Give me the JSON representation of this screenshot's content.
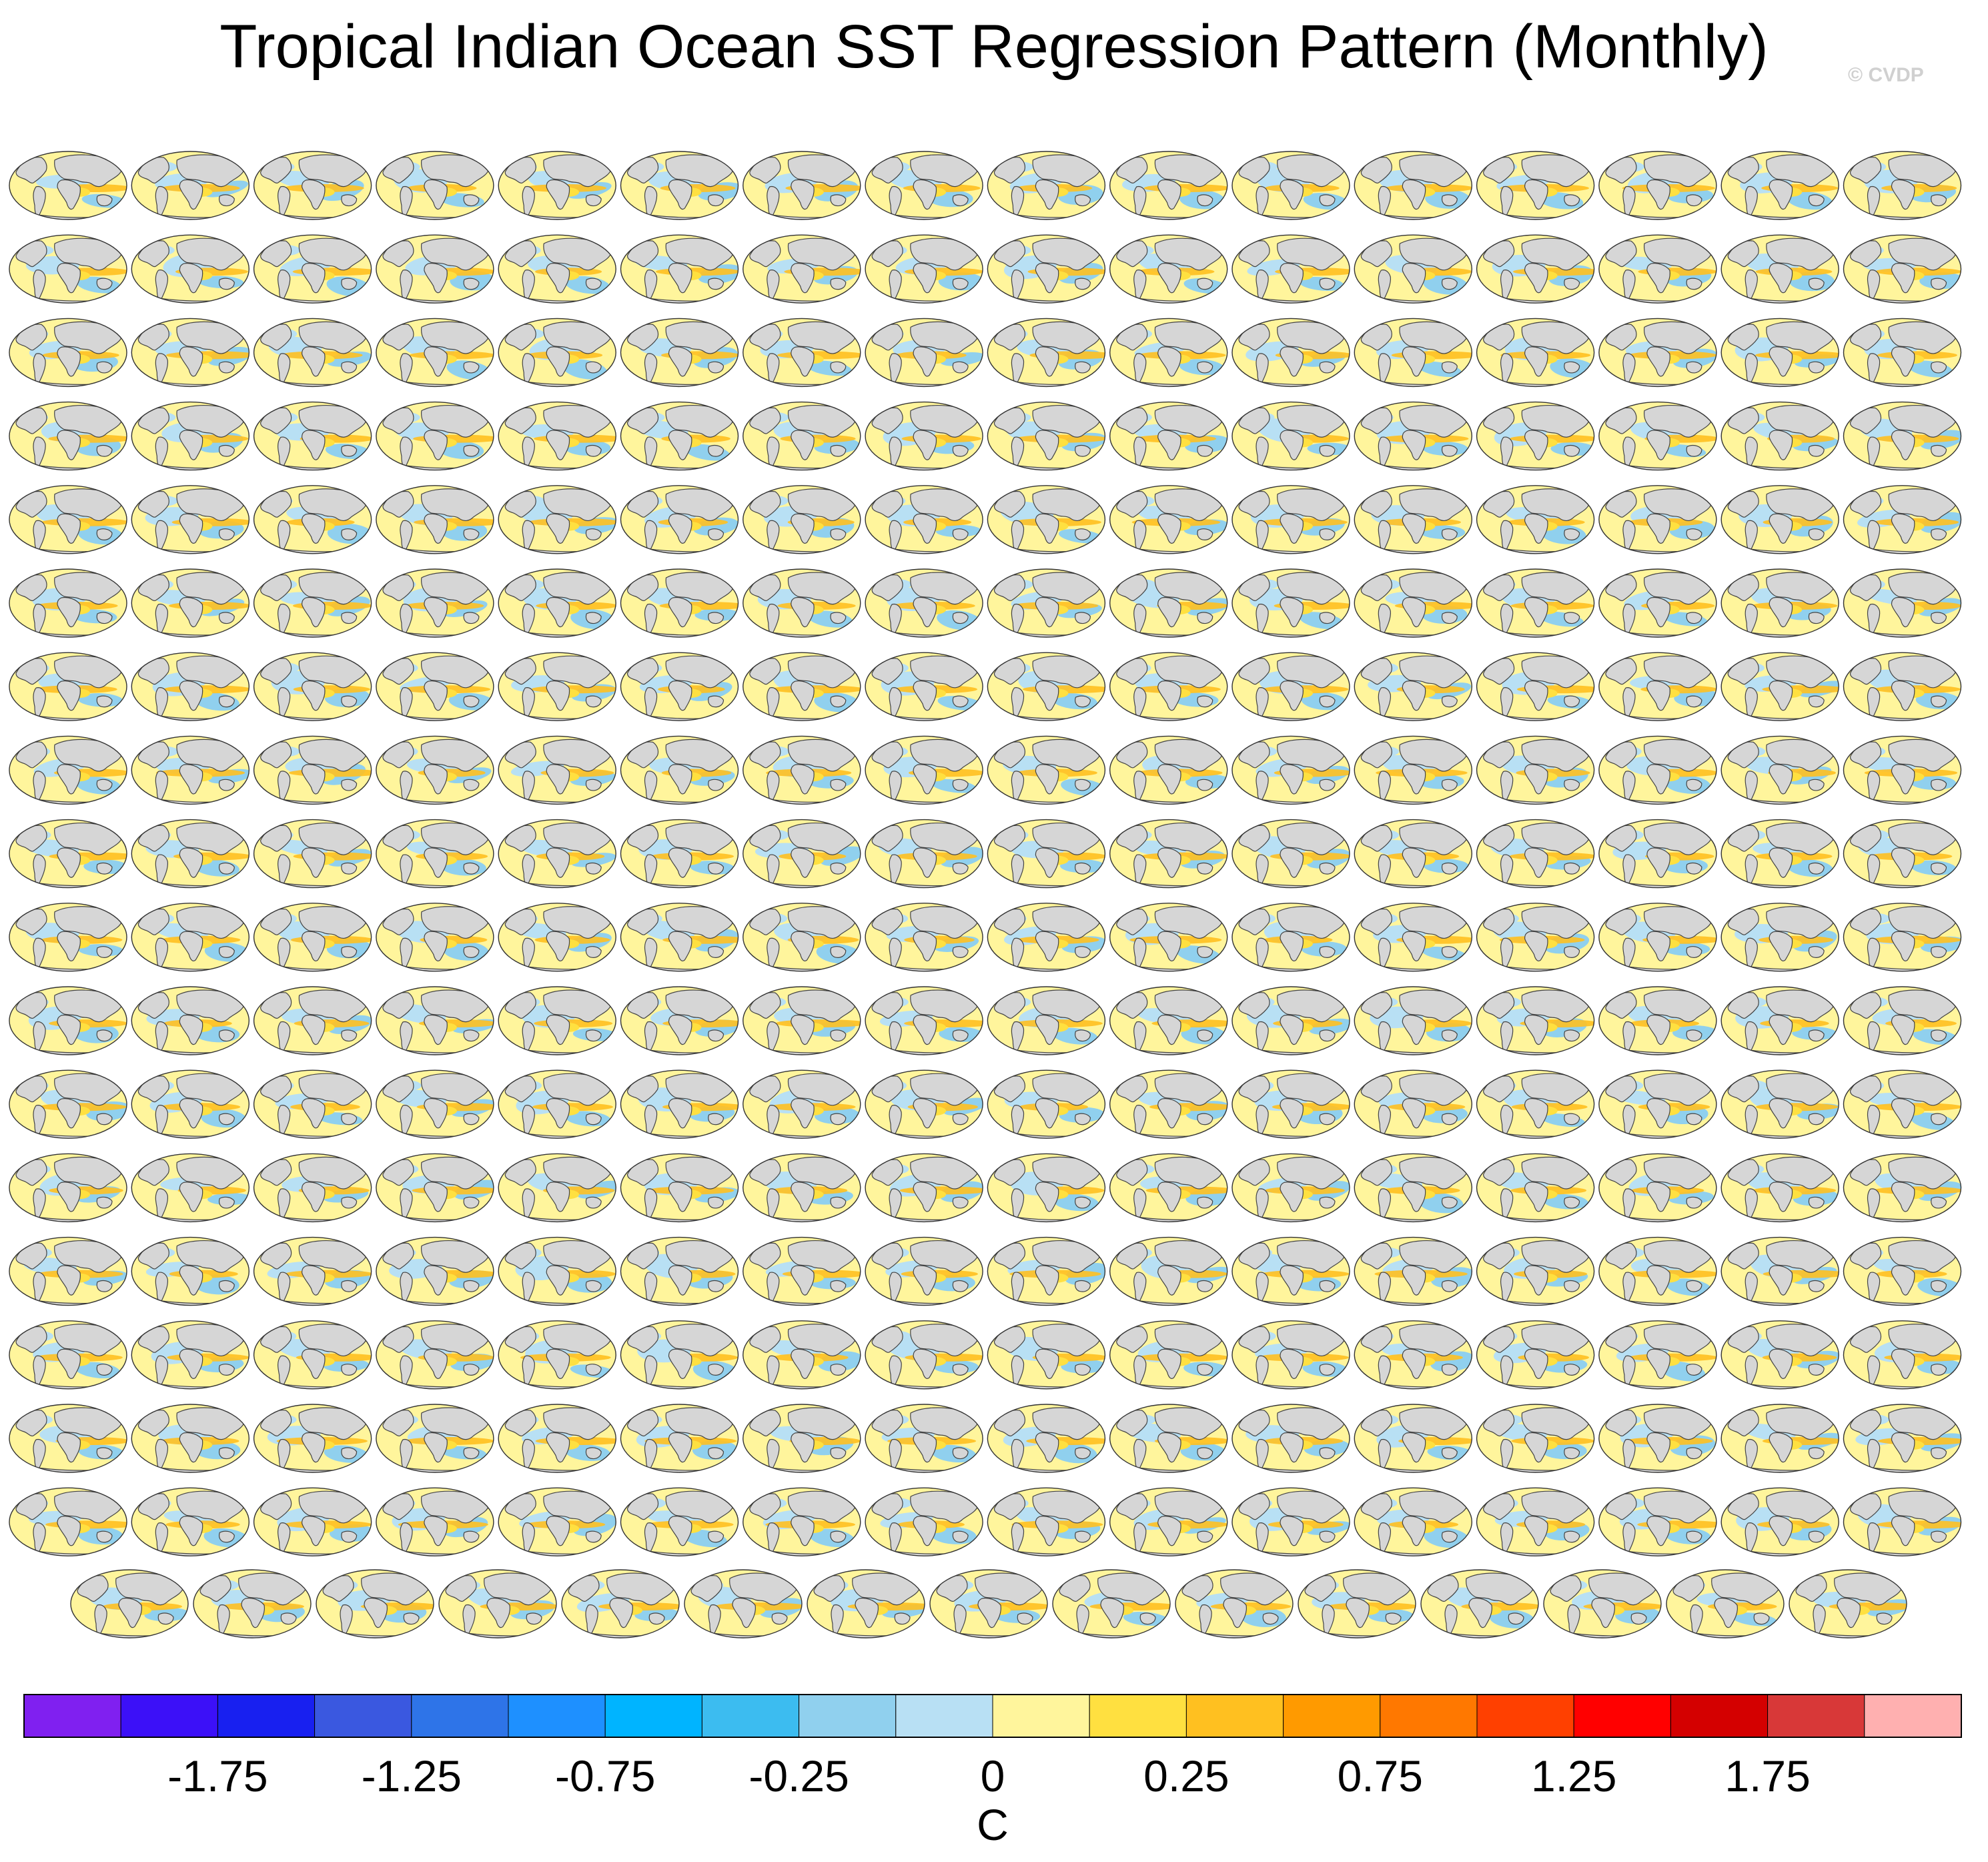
{
  "title": "Tropical Indian Ocean SST Regression Pattern (Monthly)",
  "watermark": "© CVDP",
  "chart_data": {
    "type": "heatmap",
    "description_shown": "small-multiple global ocean maps (regression patterns), 16 columns × 17 rows plus a final centered row of 15",
    "rows_full": 17,
    "columns": 16,
    "last_row_count": 15,
    "colorbar": {
      "unit_label": "C",
      "tick_labels": [
        "-1.75",
        "-1.25",
        "-0.75",
        "-0.25",
        "0",
        "0.25",
        "0.75",
        "1.25",
        "1.75"
      ],
      "colors": [
        "#8020f0",
        "#3c10f8",
        "#1820f0",
        "#3a58e0",
        "#2e74e8",
        "#1e90ff",
        "#00b4ff",
        "#3cbcf0",
        "#90d0ee",
        "#b8e0f4",
        "#fff59c",
        "#ffe040",
        "#ffc020",
        "#ff9a00",
        "#ff7800",
        "#ff4000",
        "#ff0000",
        "#d40000",
        "#d83838",
        "#ffb0b0"
      ]
    }
  }
}
